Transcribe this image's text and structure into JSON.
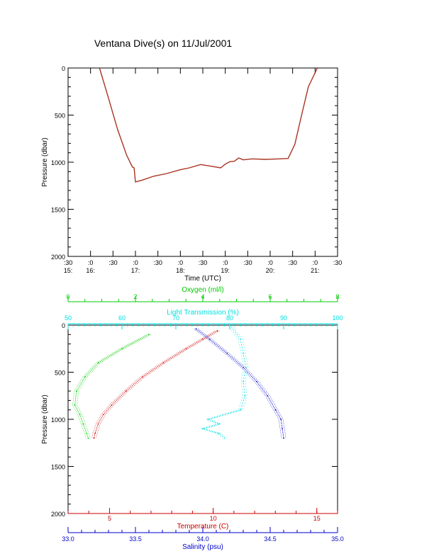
{
  "title": "Ventana Dive(s) on 11/Jul/2001",
  "colors": {
    "black": "#000000",
    "trace": "#aa3322",
    "oxygen": "#00cc00",
    "transmission": "#00e0e0",
    "temperature": "#cc0000",
    "salinity": "#0000cc"
  },
  "chart_data": [
    {
      "type": "line",
      "xlabel": "Time (UTC)",
      "ylabel": "Pressure (dbar)",
      "y_reversed": true,
      "ylim": [
        0,
        2000
      ],
      "yticks": [
        "0",
        "500",
        "1000",
        "1500",
        "2000"
      ],
      "xlim_hours": [
        15.5,
        21.5
      ],
      "xticks": [
        {
          "top": ":30",
          "bottom": "15:"
        },
        {
          "top": ":0",
          "bottom": "16:"
        },
        {
          "top": ":30",
          "bottom": ""
        },
        {
          "top": ":0",
          "bottom": "17:"
        },
        {
          "top": ":30",
          "bottom": ""
        },
        {
          "top": ":0",
          "bottom": "18:"
        },
        {
          "top": ":30",
          "bottom": ""
        },
        {
          "top": ":0",
          "bottom": "19:"
        },
        {
          "top": ":30",
          "bottom": ""
        },
        {
          "top": ":0",
          "bottom": "20:"
        },
        {
          "top": ":30",
          "bottom": ""
        },
        {
          "top": ":0",
          "bottom": "21:"
        },
        {
          "top": ":30",
          "bottom": ""
        }
      ],
      "series": [
        {
          "x_hours": [
            16.2,
            16.4,
            16.6,
            16.8,
            16.93,
            16.97,
            17.0,
            17.15,
            17.4,
            17.7,
            18.0,
            18.2,
            18.45,
            18.65,
            18.9,
            19.0,
            19.1,
            19.2,
            19.3,
            19.4,
            19.6,
            19.9,
            20.2,
            20.4,
            20.55,
            20.7,
            20.85,
            21.05
          ],
          "y": [
            0,
            320,
            650,
            920,
            1050,
            1060,
            1210,
            1190,
            1150,
            1120,
            1080,
            1060,
            1025,
            1040,
            1060,
            1020,
            995,
            990,
            955,
            975,
            965,
            970,
            965,
            960,
            810,
            500,
            200,
            0
          ]
        }
      ]
    },
    {
      "type": "scatter",
      "ylabel": "Pressure (dbar)",
      "y_reversed": true,
      "ylim": [
        0,
        2000
      ],
      "yticks": [
        "0",
        "500",
        "1000",
        "1500",
        "2000"
      ],
      "axes": {
        "oxygen": {
          "label": "Oxygen (ml/l)",
          "range": [
            0,
            8
          ],
          "ticks": [
            "0",
            "2",
            "4",
            "6",
            "8"
          ]
        },
        "transmission": {
          "label": "Light Transmission (%)",
          "range": [
            50,
            100
          ],
          "ticks": [
            "50",
            "60",
            "70",
            "80",
            "90",
            "100"
          ]
        },
        "temperature": {
          "label": "Temperature (C)",
          "range": [
            3,
            16
          ],
          "ticks": [
            "5",
            "10",
            "15"
          ]
        },
        "salinity": {
          "label": "Salinity (psu)",
          "range": [
            33.0,
            35.0
          ],
          "ticks": [
            "33.0",
            "33.5",
            "34.0",
            "34.5",
            "35.0"
          ]
        }
      },
      "series": [
        {
          "key": "oxygen",
          "pressure": [
            100,
            250,
            400,
            550,
            700,
            850,
            950,
            1050,
            1150,
            1200
          ],
          "values": [
            2.4,
            1.6,
            0.9,
            0.5,
            0.25,
            0.2,
            0.35,
            0.45,
            0.55,
            0.6
          ]
        },
        {
          "key": "temperature",
          "pressure": [
            60,
            150,
            250,
            400,
            550,
            700,
            850,
            950,
            1050,
            1150,
            1200
          ],
          "values": [
            10.2,
            9.5,
            8.7,
            7.6,
            6.6,
            5.8,
            5.1,
            4.7,
            4.45,
            4.3,
            4.25
          ]
        },
        {
          "key": "salinity",
          "pressure": [
            40,
            150,
            300,
            450,
            600,
            750,
            900,
            1000,
            1100,
            1200
          ],
          "values": [
            33.95,
            34.05,
            34.18,
            34.3,
            34.4,
            34.48,
            34.54,
            34.58,
            34.59,
            34.6
          ]
        },
        {
          "key": "transmission",
          "pressure": [
            0,
            150,
            300,
            450,
            600,
            750,
            900,
            1000,
            1050,
            1100,
            1150,
            1200
          ],
          "values": [
            80,
            82,
            82.5,
            83,
            82.5,
            82.8,
            82,
            76,
            78,
            75,
            78,
            79
          ]
        }
      ]
    }
  ]
}
